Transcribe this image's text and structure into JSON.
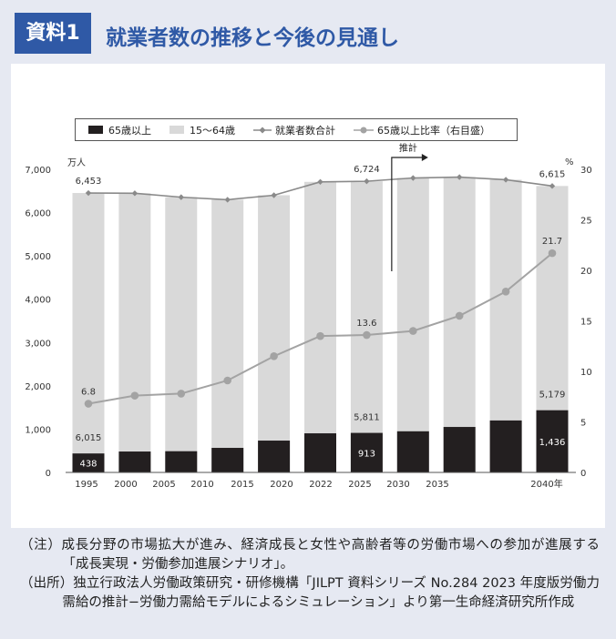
{
  "header": {
    "badge": "資料1",
    "title": "就業者数の推移と今後の見通し"
  },
  "chart_data": {
    "type": "bar",
    "categories": [
      "1995",
      "2000",
      "2005",
      "2010",
      "2015",
      "2020",
      "2022",
      "2025",
      "2030",
      "2035",
      "2040年"
    ],
    "series": [
      {
        "name": "65歳以上",
        "type": "bar",
        "stack": "total",
        "axis": "left",
        "values": [
          438,
          483,
          490,
          567,
          735,
          903,
          913,
          950,
          1050,
          1200,
          1436
        ]
      },
      {
        "name": "15〜64歳",
        "type": "bar",
        "stack": "total",
        "axis": "left",
        "values": [
          6015,
          5963,
          5866,
          5731,
          5666,
          5807,
          5811,
          5850,
          5770,
          5560,
          5179
        ]
      },
      {
        "name": "就業者数合計",
        "type": "line",
        "axis": "left",
        "values": [
          6453,
          6446,
          6356,
          6298,
          6401,
          6710,
          6724,
          6800,
          6820,
          6760,
          6615
        ]
      },
      {
        "name": "65歳以上比率（右目盛）",
        "type": "line",
        "axis": "right",
        "values": [
          6.8,
          7.6,
          7.8,
          9.1,
          11.5,
          13.5,
          13.6,
          14.0,
          15.5,
          17.9,
          21.7
        ]
      }
    ],
    "ylim": [
      0,
      7000
    ],
    "y_ticks": [
      0,
      1000,
      2000,
      3000,
      4000,
      5000,
      6000,
      7000
    ],
    "y2lim": [
      0,
      30
    ],
    "y2_ticks": [
      0,
      5,
      10,
      15,
      20,
      25,
      30
    ],
    "y_unit_left": "万人",
    "y_unit_right": "%",
    "labeled_indices": [
      0,
      6,
      10
    ],
    "projection": {
      "label": "推計",
      "start_index": 7
    },
    "grid": false,
    "legend": "top",
    "colors": {
      "age_65_plus": "#231f20",
      "age_15_64": "#d9d9d9",
      "total_line": "#8a8a8a",
      "ratio_line": "#a3a3a3"
    }
  },
  "notes": [
    "（注）成長分野の市場拡大が進み、経済成長と女性や高齢者等の労働市場への参加が進展する「成長実現・労働参加進展シナリオ」。",
    "（出所）独立行政法人労働政策研究・研修機構「JILPT 資料シリーズ No.284 2023 年度版労働力需給の推計−労働力需給モデルによるシミュレーション」より第一生命経済研究所作成"
  ]
}
